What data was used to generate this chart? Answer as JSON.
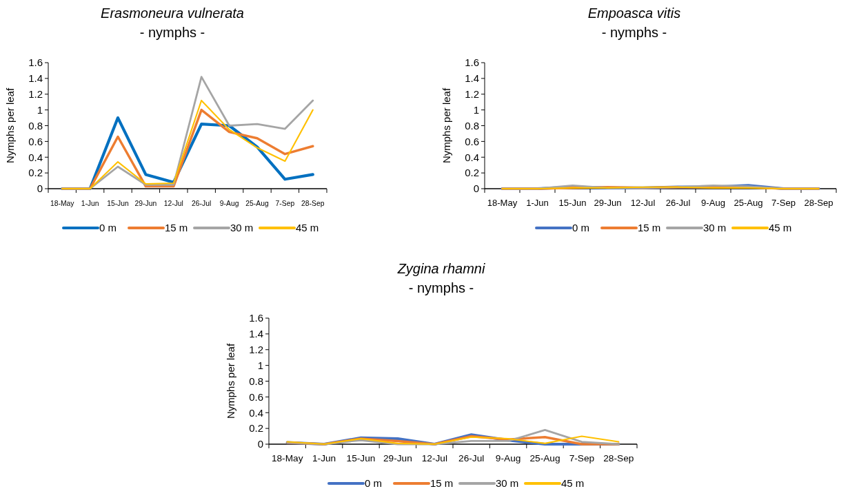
{
  "chart_data": [
    {
      "type": "line",
      "title": "Erasmoneura vulnerata",
      "subtitle": "- nymphs -",
      "ylabel": "Nymphs per leaf",
      "categories": [
        "18-May",
        "1-Jun",
        "15-Jun",
        "29-Jun",
        "12-Jul",
        "26-Jul",
        "9-Aug",
        "25-Aug",
        "7-Sep",
        "28-Sep"
      ],
      "ylim": [
        0,
        1.6
      ],
      "yticks": [
        0,
        0.2,
        0.4,
        0.6,
        0.8,
        1,
        1.2,
        1.4,
        1.6
      ],
      "legend": "bottom",
      "grid": false,
      "series": [
        {
          "name": "0 m",
          "color": "#0070c0",
          "values": [
            0,
            0,
            0.9,
            0.18,
            0.08,
            0.82,
            0.8,
            0.53,
            0.12,
            0.18
          ]
        },
        {
          "name": "15 m",
          "color": "#ed7d31",
          "values": [
            0,
            0,
            0.66,
            0.03,
            0.03,
            1.0,
            0.72,
            0.64,
            0.44,
            0.54
          ]
        },
        {
          "name": "30 m",
          "color": "#a5a5a5",
          "values": [
            0,
            0,
            0.28,
            0.05,
            0.05,
            1.42,
            0.8,
            0.82,
            0.76,
            1.12
          ]
        },
        {
          "name": "45 m",
          "color": "#ffc000",
          "values": [
            0,
            0,
            0.34,
            0.06,
            0.07,
            1.12,
            0.75,
            0.52,
            0.35,
            1.0
          ]
        }
      ]
    },
    {
      "type": "line",
      "title": "Empoasca vitis",
      "subtitle": "- nymphs -",
      "ylabel": "Nymphs per leaf",
      "categories": [
        "18-May",
        "1-Jun",
        "15-Jun",
        "29-Jun",
        "12-Jul",
        "26-Jul",
        "9-Aug",
        "25-Aug",
        "7-Sep",
        "28-Sep"
      ],
      "ylim": [
        0,
        1.6
      ],
      "yticks": [
        0,
        0.2,
        0.4,
        0.6,
        0.8,
        1,
        1.2,
        1.4,
        1.6
      ],
      "legend": "bottom",
      "grid": false,
      "series": [
        {
          "name": "0 m",
          "color": "#4472c4",
          "values": [
            0,
            0,
            0.02,
            0.01,
            0.01,
            0.02,
            0.02,
            0.04,
            0,
            0
          ]
        },
        {
          "name": "15 m",
          "color": "#ed7d31",
          "values": [
            0,
            0,
            0.01,
            0.02,
            0.01,
            0.02,
            0.02,
            0.02,
            0,
            0
          ]
        },
        {
          "name": "30 m",
          "color": "#a5a5a5",
          "values": [
            0,
            0,
            0.04,
            0.01,
            0.01,
            0.02,
            0.04,
            0.03,
            0,
            0
          ]
        },
        {
          "name": "45 m",
          "color": "#ffc000",
          "values": [
            0,
            0,
            0.01,
            0.01,
            0.02,
            0.02,
            0.01,
            0.01,
            0,
            0
          ]
        }
      ]
    },
    {
      "type": "line",
      "title": "Zygina rhamni",
      "subtitle": "- nymphs -",
      "ylabel": "Nymphs per leaf",
      "categories": [
        "18-May",
        "1-Jun",
        "15-Jun",
        "29-Jun",
        "12-Jul",
        "26-Jul",
        "9-Aug",
        "25-Aug",
        "7-Sep",
        "28-Sep"
      ],
      "ylim": [
        0,
        1.6
      ],
      "yticks": [
        0,
        0.2,
        0.4,
        0.6,
        0.8,
        1,
        1.2,
        1.4,
        1.6
      ],
      "legend": "bottom",
      "grid": false,
      "series": [
        {
          "name": "0 m",
          "color": "#4472c4",
          "values": [
            0.02,
            0,
            0.08,
            0.07,
            0,
            0.12,
            0.05,
            0,
            0,
            0
          ]
        },
        {
          "name": "15 m",
          "color": "#ed7d31",
          "values": [
            0.02,
            0,
            0.07,
            0.04,
            0,
            0.1,
            0.06,
            0.09,
            0,
            0
          ]
        },
        {
          "name": "30 m",
          "color": "#a5a5a5",
          "values": [
            0.02,
            0,
            0.05,
            0,
            0,
            0.04,
            0.04,
            0.18,
            0.03,
            0
          ]
        },
        {
          "name": "45 m",
          "color": "#ffc000",
          "values": [
            0.03,
            0,
            0.07,
            0.01,
            0,
            0.09,
            0.07,
            0.01,
            0.1,
            0.03
          ]
        }
      ]
    }
  ]
}
